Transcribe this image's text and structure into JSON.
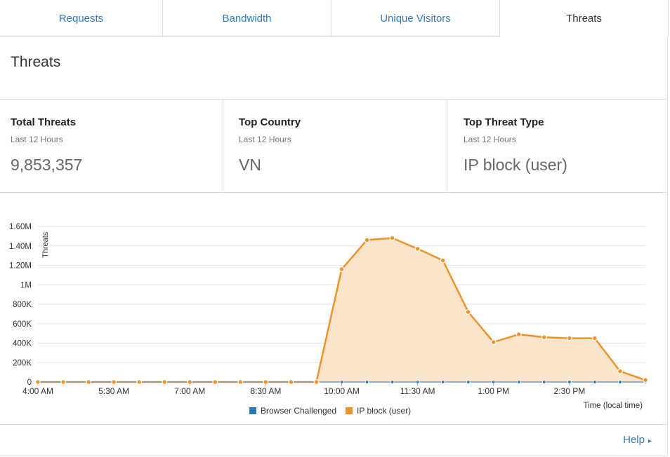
{
  "tabs": [
    {
      "label": "Requests"
    },
    {
      "label": "Bandwidth"
    },
    {
      "label": "Unique Visitors"
    },
    {
      "label": "Threats"
    }
  ],
  "panel": {
    "title": "Threats",
    "stats": [
      {
        "label": "Total Threats",
        "sub": "Last 12 Hours",
        "value": "9,853,357"
      },
      {
        "label": "Top Country",
        "sub": "Last 12 Hours",
        "value": "VN"
      },
      {
        "label": "Top Threat Type",
        "sub": "Last 12 Hours",
        "value": "IP block (user)"
      }
    ],
    "help_label": "Help"
  },
  "colors": {
    "accent": "#2f7bbf",
    "orange": "#f0922c",
    "fill": "#fbe4cc",
    "blue": "#2a7ab7"
  },
  "chart_data": {
    "type": "area",
    "title": "",
    "ylabel": "Threats",
    "xlabel": "Time (local time)",
    "y_ticks": [
      "0",
      "200K",
      "400K",
      "600K",
      "800K",
      "1M",
      "1.20M",
      "1.40M",
      "1.60M"
    ],
    "ylim": [
      0,
      1600000
    ],
    "x_ticks": [
      "4:00 AM",
      "5:30 AM",
      "7:00 AM",
      "8:30 AM",
      "10:00 AM",
      "11:30 AM",
      "1:00 PM",
      "2:30 PM"
    ],
    "legend": "bottom-center",
    "series": [
      {
        "name": "Browser Challenged",
        "color": "#2a7ab7",
        "values": [
          0,
          0,
          0,
          0,
          0,
          0,
          0,
          0,
          0,
          0,
          0,
          0,
          0,
          0,
          0,
          0,
          0,
          0,
          0,
          0,
          0,
          0,
          0,
          0,
          0
        ]
      },
      {
        "name": "IP block (user)",
        "color": "#f0922c",
        "values": [
          0,
          0,
          0,
          0,
          0,
          0,
          0,
          0,
          0,
          0,
          0,
          0,
          1160000,
          1460000,
          1480000,
          1370000,
          1250000,
          720000,
          410000,
          490000,
          460000,
          450000,
          450000,
          110000,
          20000
        ]
      }
    ]
  }
}
